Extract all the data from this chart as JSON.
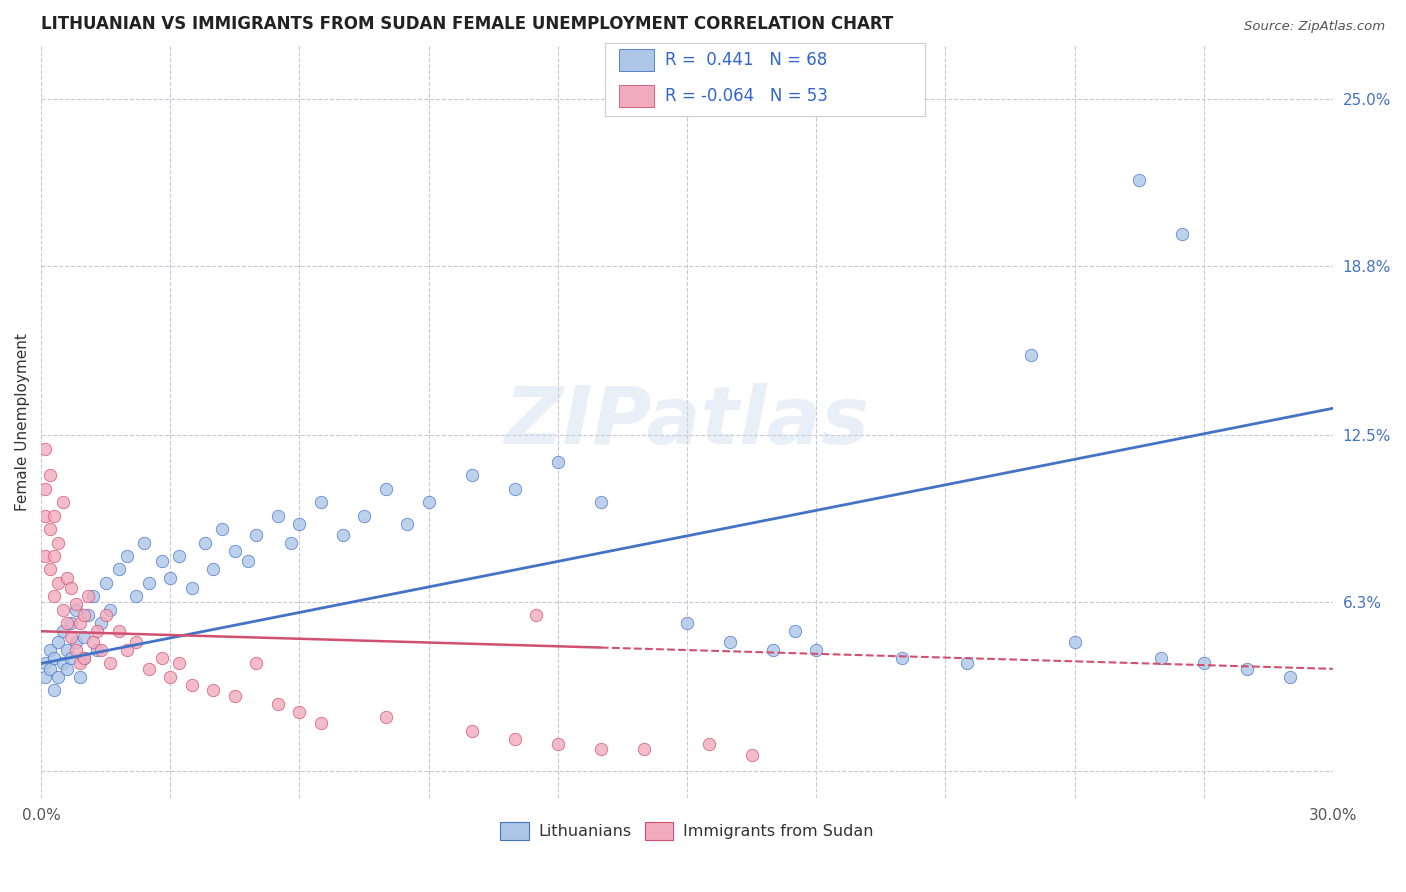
{
  "title": "LITHUANIAN VS IMMIGRANTS FROM SUDAN FEMALE UNEMPLOYMENT CORRELATION CHART",
  "source": "Source: ZipAtlas.com",
  "ylabel": "Female Unemployment",
  "xmin": 0.0,
  "xmax": 0.3,
  "ymin": -0.01,
  "ymax": 0.27,
  "yticks": [
    0.0,
    0.063,
    0.125,
    0.188,
    0.25
  ],
  "ytick_labels": [
    "",
    "6.3%",
    "12.5%",
    "18.8%",
    "25.0%"
  ],
  "r1": 0.441,
  "n1": 68,
  "r2": -0.064,
  "n2": 53,
  "color_blue": "#adc6e8",
  "color_pink": "#f2aabe",
  "line_blue": "#4472c4",
  "line_pink": "#d05070",
  "watermark": "ZIPatlas",
  "background": "#ffffff",
  "grid_color": "#c8c8d8",
  "legend_label1": "Lithuanians",
  "legend_label2": "Immigrants from Sudan",
  "trend_blue_y0": 0.04,
  "trend_blue_y1": 0.135,
  "trend_pink_y0": 0.052,
  "trend_pink_y1": 0.038,
  "trend_pink_solid_end": 0.13,
  "scatter_blue": [
    [
      0.001,
      0.04
    ],
    [
      0.001,
      0.035
    ],
    [
      0.002,
      0.045
    ],
    [
      0.002,
      0.038
    ],
    [
      0.003,
      0.042
    ],
    [
      0.003,
      0.03
    ],
    [
      0.004,
      0.048
    ],
    [
      0.004,
      0.035
    ],
    [
      0.005,
      0.04
    ],
    [
      0.005,
      0.052
    ],
    [
      0.006,
      0.045
    ],
    [
      0.006,
      0.038
    ],
    [
      0.007,
      0.055
    ],
    [
      0.007,
      0.042
    ],
    [
      0.008,
      0.048
    ],
    [
      0.008,
      0.06
    ],
    [
      0.009,
      0.035
    ],
    [
      0.01,
      0.05
    ],
    [
      0.01,
      0.042
    ],
    [
      0.011,
      0.058
    ],
    [
      0.012,
      0.065
    ],
    [
      0.013,
      0.045
    ],
    [
      0.014,
      0.055
    ],
    [
      0.015,
      0.07
    ],
    [
      0.016,
      0.06
    ],
    [
      0.018,
      0.075
    ],
    [
      0.02,
      0.08
    ],
    [
      0.022,
      0.065
    ],
    [
      0.024,
      0.085
    ],
    [
      0.025,
      0.07
    ],
    [
      0.028,
      0.078
    ],
    [
      0.03,
      0.072
    ],
    [
      0.032,
      0.08
    ],
    [
      0.035,
      0.068
    ],
    [
      0.038,
      0.085
    ],
    [
      0.04,
      0.075
    ],
    [
      0.042,
      0.09
    ],
    [
      0.045,
      0.082
    ],
    [
      0.048,
      0.078
    ],
    [
      0.05,
      0.088
    ],
    [
      0.055,
      0.095
    ],
    [
      0.058,
      0.085
    ],
    [
      0.06,
      0.092
    ],
    [
      0.065,
      0.1
    ],
    [
      0.07,
      0.088
    ],
    [
      0.075,
      0.095
    ],
    [
      0.08,
      0.105
    ],
    [
      0.085,
      0.092
    ],
    [
      0.09,
      0.1
    ],
    [
      0.1,
      0.11
    ],
    [
      0.11,
      0.105
    ],
    [
      0.12,
      0.115
    ],
    [
      0.13,
      0.1
    ],
    [
      0.15,
      0.055
    ],
    [
      0.16,
      0.048
    ],
    [
      0.17,
      0.045
    ],
    [
      0.175,
      0.052
    ],
    [
      0.18,
      0.045
    ],
    [
      0.2,
      0.042
    ],
    [
      0.215,
      0.04
    ],
    [
      0.23,
      0.155
    ],
    [
      0.24,
      0.048
    ],
    [
      0.255,
      0.22
    ],
    [
      0.26,
      0.042
    ],
    [
      0.265,
      0.2
    ],
    [
      0.27,
      0.04
    ],
    [
      0.28,
      0.038
    ],
    [
      0.29,
      0.035
    ]
  ],
  "scatter_pink": [
    [
      0.001,
      0.12
    ],
    [
      0.001,
      0.105
    ],
    [
      0.001,
      0.095
    ],
    [
      0.001,
      0.08
    ],
    [
      0.002,
      0.11
    ],
    [
      0.002,
      0.09
    ],
    [
      0.002,
      0.075
    ],
    [
      0.003,
      0.095
    ],
    [
      0.003,
      0.08
    ],
    [
      0.003,
      0.065
    ],
    [
      0.004,
      0.085
    ],
    [
      0.004,
      0.07
    ],
    [
      0.005,
      0.1
    ],
    [
      0.005,
      0.06
    ],
    [
      0.006,
      0.072
    ],
    [
      0.006,
      0.055
    ],
    [
      0.007,
      0.068
    ],
    [
      0.007,
      0.05
    ],
    [
      0.008,
      0.062
    ],
    [
      0.008,
      0.045
    ],
    [
      0.009,
      0.055
    ],
    [
      0.009,
      0.04
    ],
    [
      0.01,
      0.058
    ],
    [
      0.01,
      0.042
    ],
    [
      0.011,
      0.065
    ],
    [
      0.012,
      0.048
    ],
    [
      0.013,
      0.052
    ],
    [
      0.014,
      0.045
    ],
    [
      0.015,
      0.058
    ],
    [
      0.016,
      0.04
    ],
    [
      0.018,
      0.052
    ],
    [
      0.02,
      0.045
    ],
    [
      0.022,
      0.048
    ],
    [
      0.025,
      0.038
    ],
    [
      0.028,
      0.042
    ],
    [
      0.03,
      0.035
    ],
    [
      0.032,
      0.04
    ],
    [
      0.035,
      0.032
    ],
    [
      0.04,
      0.03
    ],
    [
      0.045,
      0.028
    ],
    [
      0.05,
      0.04
    ],
    [
      0.055,
      0.025
    ],
    [
      0.06,
      0.022
    ],
    [
      0.065,
      0.018
    ],
    [
      0.08,
      0.02
    ],
    [
      0.1,
      0.015
    ],
    [
      0.11,
      0.012
    ],
    [
      0.115,
      0.058
    ],
    [
      0.12,
      0.01
    ],
    [
      0.13,
      0.008
    ],
    [
      0.14,
      0.008
    ],
    [
      0.155,
      0.01
    ],
    [
      0.165,
      0.006
    ]
  ]
}
